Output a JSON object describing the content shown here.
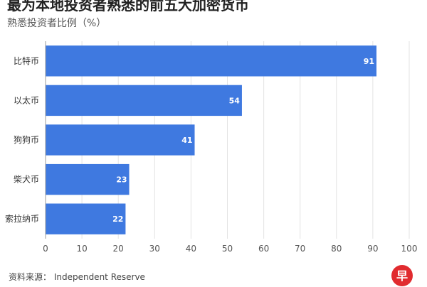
{
  "title": "最为本地投资者熟悉的前五大加密货币",
  "subtitle": "熟悉投资者比例（%）",
  "source": "资料来源： Independent Reserve",
  "logo_char": "早",
  "colors": {
    "bar": "#3f79e0",
    "grid": "#e3e3e3",
    "axis": "#555555",
    "label_text": "#ffffff",
    "logo": "#e12b2f"
  },
  "chart_data": {
    "type": "bar",
    "orientation": "horizontal",
    "categories": [
      "比特币",
      "以太币",
      "狗狗币",
      "柴犬币",
      "索拉纳币"
    ],
    "values": [
      91,
      54,
      41,
      23,
      22
    ],
    "xlim": [
      0,
      100
    ],
    "xticks": [
      0,
      10,
      20,
      30,
      40,
      50,
      60,
      70,
      80,
      90,
      100
    ],
    "grid": true,
    "data_labels": true
  }
}
